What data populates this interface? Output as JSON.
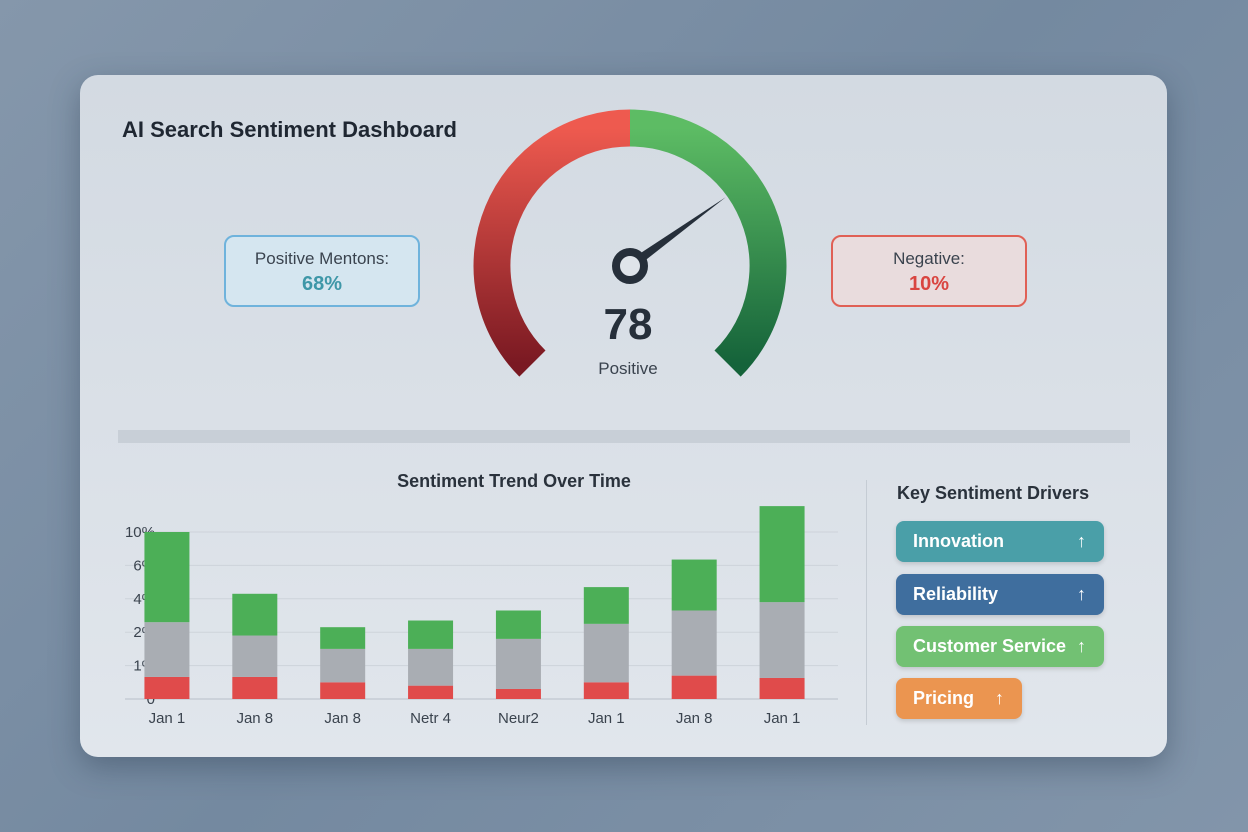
{
  "header": {
    "title": "AI Search Sentiment Dashboard"
  },
  "stats": {
    "positive": {
      "label": "Positive Mentons:",
      "value": "68%"
    },
    "negative": {
      "label": "Negative:",
      "value": "10%"
    }
  },
  "gauge": {
    "score": "78",
    "value": 78,
    "range": [
      0,
      100
    ],
    "label": "Positive",
    "colors": {
      "negative": "#e5524a",
      "positive": "#4fb05a"
    }
  },
  "chart_data": {
    "type": "bar",
    "stacked": true,
    "title": "Sentiment Trend Over Time",
    "categories": [
      "Jan 1",
      "Jan 8",
      "Jan 8",
      "Netr 4",
      "Neur2",
      "Jan 1",
      "Jan 8",
      "Jan 1"
    ],
    "y_ticks": [
      "0",
      "1%",
      "2%",
      "4%",
      "6%",
      "10%"
    ],
    "y_tick_values": [
      0,
      1,
      2,
      4,
      6,
      10
    ],
    "grid": true,
    "series": [
      {
        "key": "negative",
        "color": "#e04b4b",
        "values": [
          0.66,
          0.66,
          0.5,
          0.4,
          0.3,
          0.5,
          0.7,
          0.63
        ]
      },
      {
        "key": "neutral",
        "color": "#a9adb3",
        "values": [
          1.94,
          1.24,
          1.0,
          1.1,
          1.5,
          2.0,
          2.6,
          3.17
        ]
      },
      {
        "key": "positive",
        "color": "#4caf57",
        "values": [
          7.4,
          2.4,
          0.8,
          1.2,
          1.5,
          2.2,
          3.4,
          9.3
        ]
      }
    ]
  },
  "drivers": {
    "title": "Key Sentiment Drivers",
    "items": [
      {
        "label": "Innovation",
        "trend": "↑",
        "color": "#4a9fa8"
      },
      {
        "label": "Reliability",
        "trend": "↑",
        "color": "#3f6e9e"
      },
      {
        "label": "Customer Service",
        "trend": "↑",
        "color": "#72c173"
      },
      {
        "label": "Pricing",
        "trend": "↑",
        "color": "#eb9550"
      }
    ]
  }
}
